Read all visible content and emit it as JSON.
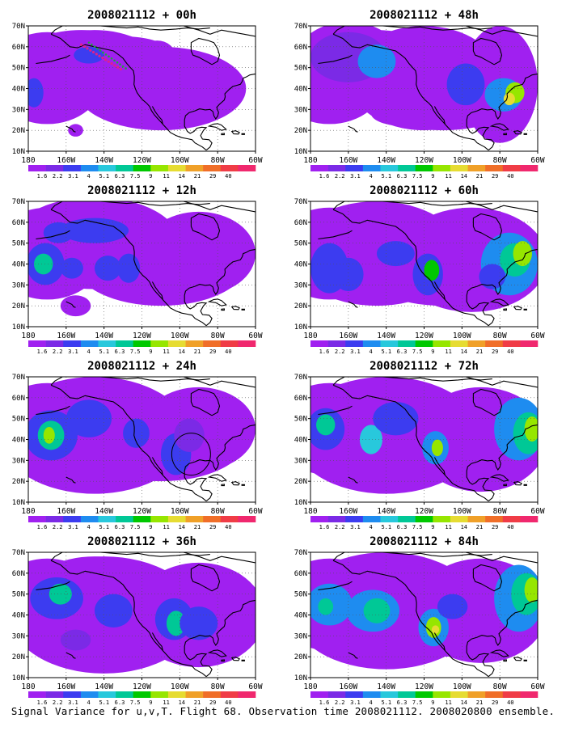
{
  "figure": {
    "caption": "Signal Variance for u,v,T. Flight 68. Observation time 2008021112. 2008020800 ensemble."
  },
  "axes": {
    "lat_labels": [
      "70N",
      "60N",
      "50N",
      "40N",
      "30N",
      "20N",
      "10N"
    ],
    "lon_labels": [
      "180",
      "160W",
      "140W",
      "120W",
      "100W",
      "80W",
      "60W"
    ]
  },
  "colorbar": {
    "labels": [
      "1.6",
      "2.2",
      "3.1",
      "4",
      "5.1",
      "6.3",
      "7.5",
      "9",
      "11",
      "14",
      "21",
      "29",
      "40"
    ],
    "colors": [
      "#ffffff",
      "#a020f0",
      "#7b2ae6",
      "#3c3cf0",
      "#1e8cf0",
      "#28c8dc",
      "#00c896",
      "#00c800",
      "#96e600",
      "#e6dc32",
      "#f0a028",
      "#f06e28",
      "#f03c46",
      "#f0286e"
    ]
  },
  "panels": [
    {
      "title": "2008021112 + 00h"
    },
    {
      "title": "2008021112 + 48h"
    },
    {
      "title": "2008021112 + 12h"
    },
    {
      "title": "2008021112 + 60h"
    },
    {
      "title": "2008021112 + 24h"
    },
    {
      "title": "2008021112 + 72h"
    },
    {
      "title": "2008021112 + 36h"
    },
    {
      "title": "2008021112 + 84h"
    }
  ]
}
